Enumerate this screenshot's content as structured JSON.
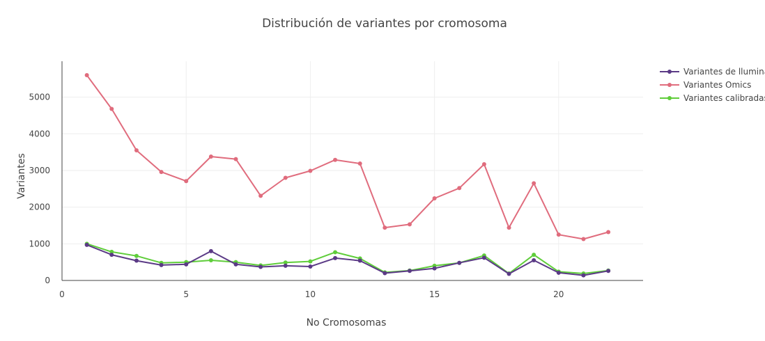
{
  "chart_data": {
    "type": "line",
    "title": "Distribución de variantes por cromosoma",
    "xlabel": "No Cromosomas",
    "ylabel": "Variantes",
    "xlim": [
      0,
      23.4
    ],
    "ylim": [
      0,
      5980
    ],
    "xticks": [
      0,
      5,
      10,
      15,
      20
    ],
    "yticks": [
      0,
      1000,
      2000,
      3000,
      4000,
      5000
    ],
    "grid": true,
    "legend_position": "top-right",
    "x": [
      1,
      2,
      3,
      4,
      5,
      6,
      7,
      8,
      9,
      10,
      11,
      12,
      13,
      14,
      15,
      16,
      17,
      18,
      19,
      20,
      21,
      22
    ],
    "series": [
      {
        "name": "Variantes de llumina",
        "color": "#5b3a86",
        "values": [
          970,
          700,
          540,
          420,
          440,
          800,
          440,
          370,
          400,
          380,
          610,
          540,
          200,
          260,
          330,
          480,
          620,
          180,
          550,
          210,
          140,
          260
        ]
      },
      {
        "name": "Variantes Omics",
        "color": "#e06c7d",
        "values": [
          5600,
          4680,
          3550,
          2960,
          2710,
          3380,
          3310,
          2310,
          2800,
          2990,
          3290,
          3190,
          1440,
          1530,
          2240,
          2520,
          3170,
          1440,
          2650,
          1250,
          1130,
          1320
        ]
      },
      {
        "name": "Variantes calibradas",
        "color": "#5fcd3a",
        "values": [
          1000,
          780,
          670,
          480,
          500,
          550,
          500,
          410,
          490,
          520,
          770,
          600,
          220,
          270,
          400,
          480,
          680,
          190,
          700,
          240,
          190,
          270
        ]
      }
    ]
  }
}
